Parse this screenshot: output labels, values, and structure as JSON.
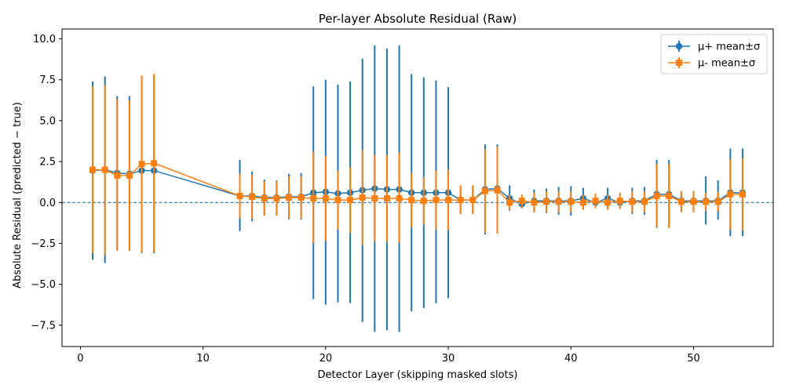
{
  "chart_data": {
    "type": "line",
    "title": "Per-layer Absolute Residual (Raw)",
    "xlabel": "Detector Layer (skipping masked slots)",
    "ylabel": "Absolute Residual (predicted − true)",
    "xlim": [
      -1.5,
      56.5
    ],
    "ylim": [
      -8.8,
      10.6
    ],
    "xticks": [
      0,
      10,
      20,
      30,
      40,
      50
    ],
    "xtick_labels": [
      "0",
      "10",
      "20",
      "30",
      "40",
      "50"
    ],
    "yticks": [
      -7.5,
      -5.0,
      -2.5,
      0.0,
      2.5,
      5.0,
      7.5,
      10.0
    ],
    "ytick_labels": [
      "−7.5",
      "−5.0",
      "−2.5",
      "0.0",
      "2.5",
      "5.0",
      "7.5",
      "10.0"
    ],
    "reference_line": 0,
    "grid": false,
    "legend_position": "top-right",
    "x": [
      1,
      2,
      3,
      4,
      5,
      6,
      13,
      14,
      15,
      16,
      17,
      18,
      19,
      20,
      21,
      22,
      23,
      24,
      25,
      26,
      27,
      28,
      29,
      30,
      31,
      32,
      33,
      34,
      35,
      36,
      37,
      38,
      39,
      40,
      41,
      42,
      43,
      44,
      45,
      46,
      47,
      48,
      49,
      50,
      51,
      52,
      53,
      54
    ],
    "series": [
      {
        "name": "μ+ mean±σ",
        "color": "#1f77b4",
        "marker": "circle",
        "values": [
          1.95,
          2.0,
          1.8,
          1.75,
          1.95,
          1.95,
          0.4,
          0.4,
          0.3,
          0.3,
          0.35,
          0.35,
          0.6,
          0.65,
          0.55,
          0.6,
          0.75,
          0.85,
          0.8,
          0.8,
          0.6,
          0.6,
          0.6,
          0.6,
          0.15,
          0.15,
          0.8,
          0.85,
          0.25,
          -0.1,
          0.1,
          0.1,
          0.1,
          0.1,
          0.25,
          0.0,
          0.25,
          0.0,
          0.1,
          0.1,
          0.5,
          0.5,
          0.1,
          0.1,
          0.1,
          0.1,
          0.6,
          0.6
        ],
        "err_low": [
          -3.5,
          -3.7,
          -2.9,
          -2.95,
          -3.1,
          -3.1,
          -1.75,
          -1.15,
          -0.8,
          -0.8,
          -1.05,
          -1.05,
          -5.9,
          -6.25,
          -6.1,
          -6.15,
          -7.3,
          -7.9,
          -7.8,
          -7.9,
          -6.65,
          -6.45,
          -6.15,
          -5.85,
          -0.7,
          -0.7,
          -1.95,
          -1.9,
          -0.5,
          -0.35,
          -0.6,
          -0.65,
          -0.75,
          -0.8,
          -0.4,
          -0.3,
          -0.4,
          -0.3,
          -0.7,
          -0.75,
          -1.55,
          -1.55,
          -0.5,
          -0.5,
          -1.35,
          -1.05,
          -2.05,
          -2.05
        ],
        "err_high": [
          7.4,
          7.7,
          6.5,
          6.5,
          7.7,
          7.8,
          2.6,
          1.9,
          1.4,
          1.35,
          1.75,
          1.8,
          7.1,
          7.5,
          7.2,
          7.4,
          8.8,
          9.6,
          9.4,
          9.6,
          7.85,
          7.65,
          7.45,
          7.05,
          1.0,
          1.0,
          3.55,
          3.55,
          1.05,
          0.15,
          0.8,
          0.85,
          0.95,
          1.0,
          0.9,
          0.3,
          0.9,
          0.3,
          0.9,
          0.95,
          2.6,
          2.6,
          0.7,
          0.7,
          1.6,
          1.35,
          3.3,
          3.3
        ]
      },
      {
        "name": "μ- mean±σ",
        "color": "#ff7f0e",
        "marker": "square",
        "values": [
          2.0,
          2.0,
          1.65,
          1.65,
          2.35,
          2.4,
          0.4,
          0.35,
          0.25,
          0.25,
          0.3,
          0.3,
          0.25,
          0.25,
          0.15,
          0.15,
          0.3,
          0.25,
          0.25,
          0.25,
          0.15,
          0.1,
          0.15,
          0.15,
          0.15,
          0.15,
          0.7,
          0.75,
          0.0,
          0.1,
          0.0,
          0.05,
          0.05,
          0.05,
          0.0,
          0.1,
          0.0,
          0.1,
          0.05,
          0.05,
          0.4,
          0.4,
          0.05,
          0.05,
          0.05,
          0.05,
          0.5,
          0.5
        ],
        "err_low": [
          -3.1,
          -3.2,
          -2.95,
          -2.95,
          -3.05,
          -3.05,
          -0.95,
          -1.0,
          -0.8,
          -0.8,
          -1.0,
          -1.0,
          -2.5,
          -2.35,
          -1.65,
          -1.85,
          -2.6,
          -2.4,
          -2.4,
          -2.45,
          -1.5,
          -1.35,
          -1.65,
          -1.7,
          -0.7,
          -0.7,
          -1.85,
          -1.9,
          -0.45,
          -0.3,
          -0.6,
          -0.6,
          -0.6,
          -0.6,
          -0.45,
          -0.35,
          -0.45,
          -0.4,
          -0.6,
          -0.6,
          -1.5,
          -1.55,
          -0.6,
          -0.6,
          -0.5,
          -0.55,
          -1.65,
          -1.7
        ],
        "err_high": [
          7.1,
          7.2,
          6.3,
          6.25,
          7.75,
          7.85,
          1.75,
          1.7,
          1.3,
          1.3,
          1.6,
          1.6,
          3.1,
          2.85,
          1.95,
          2.15,
          3.2,
          2.9,
          2.9,
          3.05,
          1.8,
          1.55,
          1.95,
          2.0,
          1.05,
          1.05,
          3.25,
          3.4,
          0.45,
          0.5,
          0.6,
          0.7,
          0.7,
          0.7,
          0.45,
          0.55,
          0.45,
          0.6,
          0.7,
          0.7,
          2.35,
          2.35,
          0.7,
          0.7,
          0.6,
          0.65,
          2.65,
          2.7
        ]
      }
    ]
  }
}
